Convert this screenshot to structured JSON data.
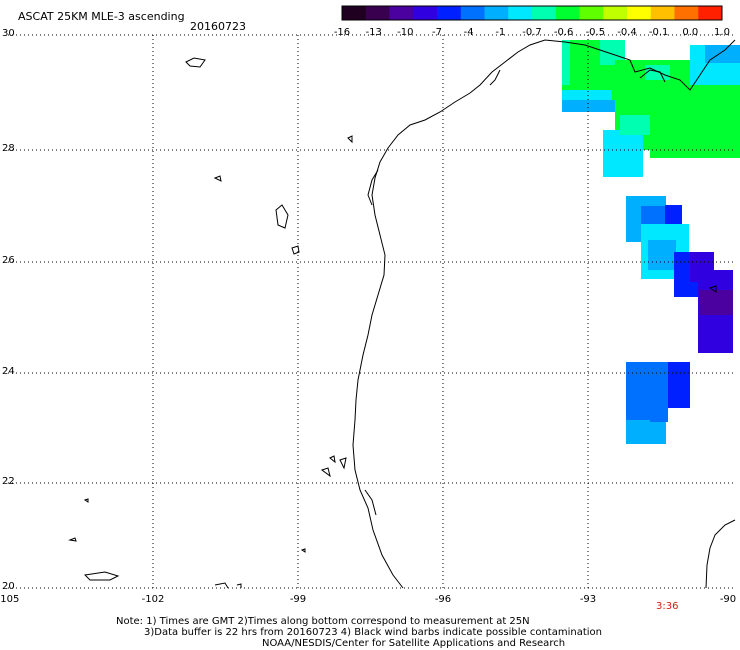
{
  "title": "ASCAT 25KM MLE-3 ascending",
  "date": "20160723",
  "colorbar": {
    "labels": [
      "-16",
      "-13",
      "-10",
      "-7",
      "-4",
      "-1",
      "-0.7",
      "-0.6",
      "-0.5",
      "-0.4",
      "-0.1",
      "0.0",
      "1.0"
    ],
    "colors": [
      "#200020",
      "#3a0050",
      "#4b00a0",
      "#3000e0",
      "#0020ff",
      "#0070ff",
      "#00b0ff",
      "#00e8ff",
      "#00ffb0",
      "#00ff30",
      "#60ff00",
      "#c0ff00",
      "#ffff00",
      "#ffc000",
      "#ff7000",
      "#ff2000"
    ]
  },
  "lat_labels": [
    "30",
    "28",
    "26",
    "24",
    "22",
    "20"
  ],
  "lon_labels": [
    "-105",
    "-102",
    "-99",
    "-96",
    "-93",
    "-90"
  ],
  "pass_time": "3:36",
  "notes": {
    "line1": "Note: 1) Times are GMT 2)Times along bottom correspond to measurement at 25N",
    "line2": "3)Data buffer is 22 hrs from 20160723 4) Black wind barbs indicate possible contamination",
    "line3": "NOAA/NESDIS/Center for Satellite Applications and Research"
  }
}
